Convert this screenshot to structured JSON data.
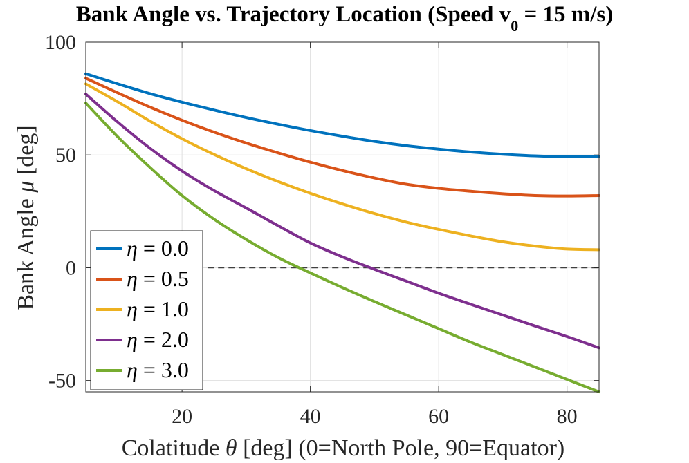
{
  "chart_data": {
    "type": "line",
    "title": "Bank Angle vs. Trajectory Location (Speed v",
    "title_subscript": "0",
    "title_suffix": " = 15 m/s)",
    "xlabel_pre": "Colatitude ",
    "xlabel_sym": "θ",
    "xlabel_post": " [deg] (0=North Pole, 90=Equator)",
    "ylabel_pre": "Bank Angle ",
    "ylabel_sym": "μ",
    "ylabel_post": " [deg]",
    "xlim": [
      5,
      85
    ],
    "ylim": [
      -55,
      100
    ],
    "xticks": [
      20,
      40,
      60,
      80
    ],
    "yticks": [
      100,
      50,
      0,
      -50
    ],
    "ytick_labels": [
      "100",
      "50",
      "0",
      "-50"
    ],
    "xtick_labels": [
      "20",
      "40",
      "60",
      "80"
    ],
    "grid": true,
    "legend_position": "bottom-left",
    "reference_line": {
      "y": 0,
      "x_start": 24,
      "style": "dashed"
    },
    "x": [
      5,
      10,
      15,
      20,
      25,
      30,
      35,
      40,
      45,
      50,
      55,
      60,
      65,
      70,
      75,
      80,
      85
    ],
    "series": [
      {
        "name": "η = 0.0",
        "color": "#0072BD",
        "values": [
          86,
          81.5,
          77.2,
          73.4,
          69.9,
          66.6,
          63.6,
          60.8,
          58.3,
          56.0,
          54.1,
          52.6,
          51.3,
          50.3,
          49.6,
          49.2,
          49.2
        ]
      },
      {
        "name": "η = 0.5",
        "color": "#D95319",
        "values": [
          84,
          77.5,
          71.2,
          65.4,
          60.1,
          55.3,
          50.9,
          46.8,
          43.1,
          39.8,
          37.0,
          35.2,
          33.9,
          32.8,
          32.0,
          31.8,
          32.0
        ]
      },
      {
        "name": "η = 1.0",
        "color": "#EDB120",
        "values": [
          81.5,
          73.5,
          65.0,
          57.2,
          50.2,
          43.9,
          38.2,
          33.0,
          28.3,
          24.0,
          20.2,
          17.0,
          14.1,
          11.5,
          9.6,
          8.3,
          8.0
        ]
      },
      {
        "name": "η = 2.0",
        "color": "#7E2F8E",
        "values": [
          77,
          64.5,
          53.0,
          42.9,
          34.2,
          26.5,
          18.6,
          11.0,
          4.8,
          -0.7,
          -6.0,
          -11.3,
          -16.2,
          -21.0,
          -25.8,
          -30.5,
          -35.5
        ]
      },
      {
        "name": "η = 3.0",
        "color": "#77AC30",
        "values": [
          73,
          58.0,
          44.5,
          32.0,
          21.5,
          12.5,
          4.5,
          -2.3,
          -8.8,
          -15.0,
          -21.0,
          -27.0,
          -33.0,
          -38.5,
          -44.0,
          -49.5,
          -55.0
        ]
      }
    ]
  }
}
